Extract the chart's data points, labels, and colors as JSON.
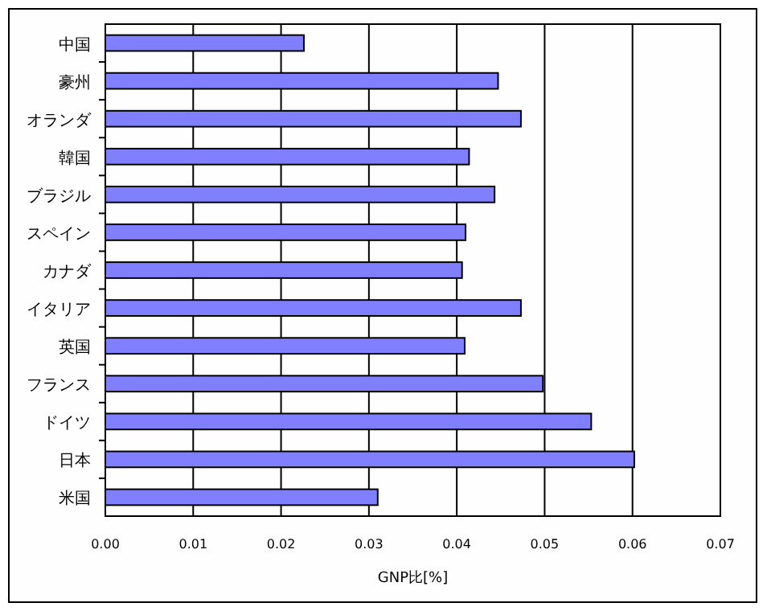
{
  "chart_data": {
    "type": "bar",
    "orientation": "horizontal",
    "xlabel": "GNP比[%]",
    "categories": [
      "中国",
      "豪州",
      "オランダ",
      "韓国",
      "ブラジル",
      "スペイン",
      "カナダ",
      "イタリア",
      "英国",
      "フランス",
      "ドイツ",
      "日本",
      "米国"
    ],
    "values": [
      0.0226,
      0.0447,
      0.0473,
      0.0414,
      0.0443,
      0.041,
      0.0406,
      0.0473,
      0.0409,
      0.0498,
      0.0553,
      0.0602,
      0.031
    ],
    "color": "#8080ff",
    "xlim": [
      0,
      0.07
    ],
    "xticks": [
      {
        "value": 0,
        "label": "0.00"
      },
      {
        "value": 0.01,
        "label": "0.01"
      },
      {
        "value": 0.02,
        "label": "0.02"
      },
      {
        "value": 0.03,
        "label": "0.03"
      },
      {
        "value": 0.04,
        "label": "0.04"
      },
      {
        "value": 0.05,
        "label": "0.05"
      },
      {
        "value": 0.06,
        "label": "0.06"
      },
      {
        "value": 0.07,
        "label": "0.07"
      }
    ],
    "grid": "x"
  }
}
